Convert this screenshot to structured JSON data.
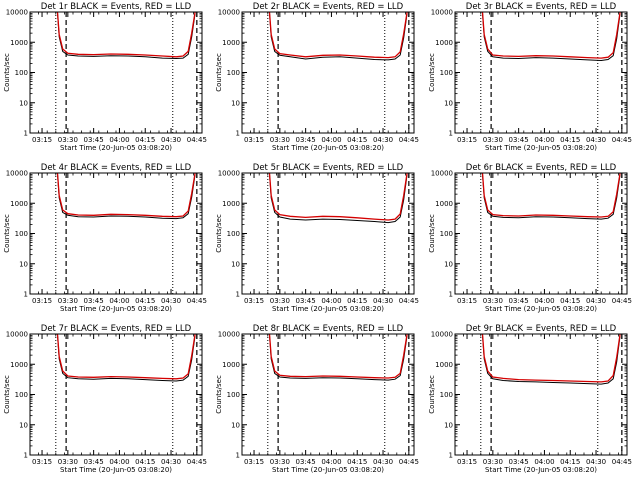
{
  "figure": {
    "tick_labels_y": [
      "1",
      "10",
      "100",
      "1000",
      "10000"
    ],
    "tick_values_y": [
      1,
      10,
      100,
      1000,
      10000
    ],
    "tick_labels_x": [
      "03:15",
      "03:30",
      "03:45",
      "04:00",
      "04:15",
      "04:30",
      "04:45"
    ],
    "tick_values_x": [
      "03:15",
      "03:30",
      "03:45",
      "04:00",
      "04:15",
      "04:30",
      "04:45"
    ],
    "xlabel": "Start Time (20-Jun-05 03:08:20)",
    "ylabel": "Counts/sec",
    "colors": {
      "events": "#000000",
      "lld": "#d40000",
      "axes": "#000000",
      "background": "#ffffff"
    }
  },
  "chart_data": [
    {
      "type": "line",
      "title": "Det 1r BLACK = Events, RED = LLD",
      "xlabel": "Start Time (20-Jun-05 03:08:20)",
      "ylabel": "Counts/sec",
      "xlim": [
        "03:08",
        "04:48"
      ],
      "ylim": [
        1,
        10000
      ],
      "yscale": "log",
      "grid": false,
      "x": [
        "03:24",
        "03:25",
        "03:27",
        "03:30",
        "03:36",
        "03:45",
        "03:55",
        "04:05",
        "04:15",
        "04:25",
        "04:33",
        "04:37",
        "04:40",
        "04:42",
        "04:44"
      ],
      "series": [
        {
          "name": "Events",
          "color": "#000000",
          "values": [
            9000,
            1500,
            500,
            380,
            350,
            340,
            360,
            350,
            330,
            300,
            290,
            300,
            400,
            1500,
            9000
          ]
        },
        {
          "name": "LLD",
          "color": "#d40000",
          "values": [
            10000,
            1800,
            600,
            430,
            400,
            390,
            410,
            400,
            380,
            350,
            330,
            350,
            500,
            2000,
            10000
          ]
        }
      ],
      "markers": {
        "dotted": [
          "03:23",
          "04:31"
        ],
        "dashed": [
          "03:29",
          "04:45"
        ]
      }
    },
    {
      "type": "line",
      "title": "Det 2r BLACK = Events, RED = LLD",
      "xlabel": "Start Time (20-Jun-05 03:08:20)",
      "ylabel": "Counts/sec",
      "xlim": [
        "03:08",
        "04:48"
      ],
      "ylim": [
        1,
        10000
      ],
      "yscale": "log",
      "grid": false,
      "x": [
        "03:24",
        "03:25",
        "03:27",
        "03:30",
        "03:36",
        "03:45",
        "03:55",
        "04:05",
        "04:15",
        "04:25",
        "04:33",
        "04:37",
        "04:40",
        "04:42",
        "04:44"
      ],
      "series": [
        {
          "name": "Events",
          "color": "#000000",
          "values": [
            9000,
            1500,
            500,
            370,
            330,
            280,
            320,
            330,
            300,
            270,
            260,
            280,
            380,
            1400,
            9000
          ]
        },
        {
          "name": "LLD",
          "color": "#d40000",
          "values": [
            10000,
            1800,
            600,
            420,
            380,
            330,
            370,
            380,
            350,
            320,
            310,
            330,
            480,
            1900,
            10000
          ]
        }
      ],
      "markers": {
        "dotted": [
          "03:23",
          "04:31"
        ],
        "dashed": [
          "03:29",
          "04:45"
        ]
      }
    },
    {
      "type": "line",
      "title": "Det 3r BLACK = Events, RED = LLD",
      "xlabel": "Start Time (20-Jun-05 03:08:20)",
      "ylabel": "Counts/sec",
      "xlim": [
        "03:08",
        "04:48"
      ],
      "ylim": [
        1,
        10000
      ],
      "yscale": "log",
      "grid": false,
      "x": [
        "03:24",
        "03:25",
        "03:27",
        "03:30",
        "03:36",
        "03:45",
        "03:55",
        "04:05",
        "04:15",
        "04:25",
        "04:33",
        "04:37",
        "04:40",
        "04:42",
        "04:44"
      ],
      "series": [
        {
          "name": "Events",
          "color": "#000000",
          "values": [
            9000,
            1500,
            500,
            330,
            300,
            290,
            310,
            300,
            280,
            260,
            250,
            270,
            360,
            1300,
            9000
          ]
        },
        {
          "name": "LLD",
          "color": "#d40000",
          "values": [
            10000,
            1800,
            600,
            380,
            350,
            340,
            360,
            350,
            330,
            310,
            300,
            320,
            450,
            1800,
            10000
          ]
        }
      ],
      "markers": {
        "dotted": [
          "03:23",
          "04:31"
        ],
        "dashed": [
          "03:29",
          "04:45"
        ]
      }
    },
    {
      "type": "line",
      "title": "Det 4r BLACK = Events, RED = LLD",
      "xlabel": "Start Time (20-Jun-05 03:08:20)",
      "ylabel": "Counts/sec",
      "xlim": [
        "03:08",
        "04:48"
      ],
      "ylim": [
        1,
        10000
      ],
      "yscale": "log",
      "grid": false,
      "x": [
        "03:24",
        "03:25",
        "03:27",
        "03:30",
        "03:36",
        "03:45",
        "03:55",
        "04:05",
        "04:15",
        "04:25",
        "04:33",
        "04:37",
        "04:40",
        "04:42",
        "04:44"
      ],
      "series": [
        {
          "name": "Events",
          "color": "#000000",
          "values": [
            9000,
            1500,
            500,
            400,
            360,
            350,
            380,
            370,
            350,
            320,
            310,
            330,
            450,
            1600,
            9000
          ]
        },
        {
          "name": "LLD",
          "color": "#d40000",
          "values": [
            10000,
            1800,
            600,
            450,
            410,
            400,
            430,
            420,
            400,
            370,
            360,
            380,
            550,
            2100,
            10000
          ]
        }
      ],
      "markers": {
        "dotted": [
          "03:23",
          "04:31"
        ],
        "dashed": [
          "03:29",
          "04:45"
        ]
      }
    },
    {
      "type": "line",
      "title": "Det 5r BLACK = Events, RED = LLD",
      "xlabel": "Start Time (20-Jun-05 03:08:20)",
      "ylabel": "Counts/sec",
      "xlim": [
        "03:08",
        "04:48"
      ],
      "ylim": [
        1,
        10000
      ],
      "yscale": "log",
      "grid": false,
      "x": [
        "03:24",
        "03:25",
        "03:27",
        "03:30",
        "03:36",
        "03:45",
        "03:55",
        "04:05",
        "04:15",
        "04:25",
        "04:33",
        "04:37",
        "04:40",
        "04:42",
        "04:44"
      ],
      "series": [
        {
          "name": "Events",
          "color": "#000000",
          "values": [
            9000,
            1500,
            500,
            350,
            300,
            280,
            300,
            290,
            270,
            250,
            230,
            250,
            350,
            1300,
            9000
          ]
        },
        {
          "name": "LLD",
          "color": "#d40000",
          "values": [
            10000,
            1800,
            600,
            420,
            370,
            340,
            370,
            360,
            330,
            300,
            280,
            300,
            440,
            1800,
            10000
          ]
        }
      ],
      "markers": {
        "dotted": [
          "03:23",
          "04:31"
        ],
        "dashed": [
          "03:29",
          "04:45"
        ]
      }
    },
    {
      "type": "line",
      "title": "Det 6r BLACK = Events, RED = LLD",
      "xlabel": "Start Time (20-Jun-05 03:08:20)",
      "ylabel": "Counts/sec",
      "xlim": [
        "03:08",
        "04:48"
      ],
      "ylim": [
        1,
        10000
      ],
      "yscale": "log",
      "grid": false,
      "x": [
        "03:24",
        "03:25",
        "03:27",
        "03:30",
        "03:36",
        "03:45",
        "03:55",
        "04:05",
        "04:15",
        "04:25",
        "04:33",
        "04:37",
        "04:40",
        "04:42",
        "04:44"
      ],
      "series": [
        {
          "name": "Events",
          "color": "#000000",
          "values": [
            9000,
            1500,
            500,
            370,
            340,
            330,
            360,
            350,
            330,
            310,
            300,
            320,
            430,
            1500,
            9000
          ]
        },
        {
          "name": "LLD",
          "color": "#d40000",
          "values": [
            10000,
            1800,
            600,
            420,
            390,
            380,
            410,
            400,
            380,
            360,
            350,
            370,
            520,
            2000,
            10000
          ]
        }
      ],
      "markers": {
        "dotted": [
          "03:23",
          "04:31"
        ],
        "dashed": [
          "03:29",
          "04:45"
        ]
      }
    },
    {
      "type": "line",
      "title": "Det 7r BLACK = Events, RED = LLD",
      "xlabel": "Start Time (20-Jun-05 03:08:20)",
      "ylabel": "Counts/sec",
      "xlim": [
        "03:08",
        "04:48"
      ],
      "ylim": [
        1,
        10000
      ],
      "yscale": "log",
      "grid": false,
      "x": [
        "03:24",
        "03:25",
        "03:27",
        "03:30",
        "03:36",
        "03:45",
        "03:55",
        "04:05",
        "04:15",
        "04:25",
        "04:33",
        "04:37",
        "04:40",
        "04:42",
        "04:44"
      ],
      "series": [
        {
          "name": "Events",
          "color": "#000000",
          "values": [
            9000,
            1500,
            500,
            360,
            330,
            320,
            340,
            330,
            310,
            290,
            280,
            300,
            400,
            1400,
            9000
          ]
        },
        {
          "name": "LLD",
          "color": "#d40000",
          "values": [
            10000,
            1800,
            600,
            410,
            380,
            370,
            390,
            380,
            360,
            340,
            330,
            350,
            480,
            1900,
            10000
          ]
        }
      ],
      "markers": {
        "dotted": [
          "03:23",
          "04:31"
        ],
        "dashed": [
          "03:29",
          "04:45"
        ]
      }
    },
    {
      "type": "line",
      "title": "Det 8r BLACK = Events, RED = LLD",
      "xlabel": "Start Time (20-Jun-05 03:08:20)",
      "ylabel": "Counts/sec",
      "xlim": [
        "03:08",
        "04:48"
      ],
      "ylim": [
        1,
        10000
      ],
      "yscale": "log",
      "grid": false,
      "x": [
        "03:24",
        "03:25",
        "03:27",
        "03:30",
        "03:36",
        "03:45",
        "03:55",
        "04:05",
        "04:15",
        "04:25",
        "04:33",
        "04:37",
        "04:40",
        "04:42",
        "04:44"
      ],
      "series": [
        {
          "name": "Events",
          "color": "#000000",
          "values": [
            9000,
            1500,
            500,
            380,
            350,
            340,
            360,
            350,
            330,
            310,
            300,
            320,
            420,
            1500,
            9000
          ]
        },
        {
          "name": "LLD",
          "color": "#d40000",
          "values": [
            10000,
            1800,
            600,
            430,
            400,
            390,
            410,
            400,
            380,
            360,
            350,
            370,
            500,
            2000,
            10000
          ]
        }
      ],
      "markers": {
        "dotted": [
          "03:23",
          "04:31"
        ],
        "dashed": [
          "03:29",
          "04:45"
        ]
      }
    },
    {
      "type": "line",
      "title": "Det 9r BLACK = Events, RED = LLD",
      "xlabel": "Start Time (20-Jun-05 03:08:20)",
      "ylabel": "Counts/sec",
      "xlim": [
        "03:08",
        "04:48"
      ],
      "ylim": [
        1,
        10000
      ],
      "yscale": "log",
      "grid": false,
      "x": [
        "03:24",
        "03:25",
        "03:27",
        "03:30",
        "03:36",
        "03:45",
        "03:55",
        "04:05",
        "04:15",
        "04:25",
        "04:33",
        "04:37",
        "04:40",
        "04:42",
        "04:44"
      ],
      "series": [
        {
          "name": "Events",
          "color": "#000000",
          "values": [
            9000,
            1500,
            500,
            330,
            290,
            270,
            260,
            250,
            240,
            230,
            220,
            240,
            330,
            1200,
            9000
          ]
        },
        {
          "name": "LLD",
          "color": "#d40000",
          "values": [
            10000,
            1800,
            600,
            380,
            340,
            310,
            300,
            290,
            280,
            270,
            260,
            280,
            420,
            1700,
            10000
          ]
        }
      ],
      "markers": {
        "dotted": [
          "03:23",
          "04:31"
        ],
        "dashed": [
          "03:29",
          "04:45"
        ]
      }
    }
  ]
}
